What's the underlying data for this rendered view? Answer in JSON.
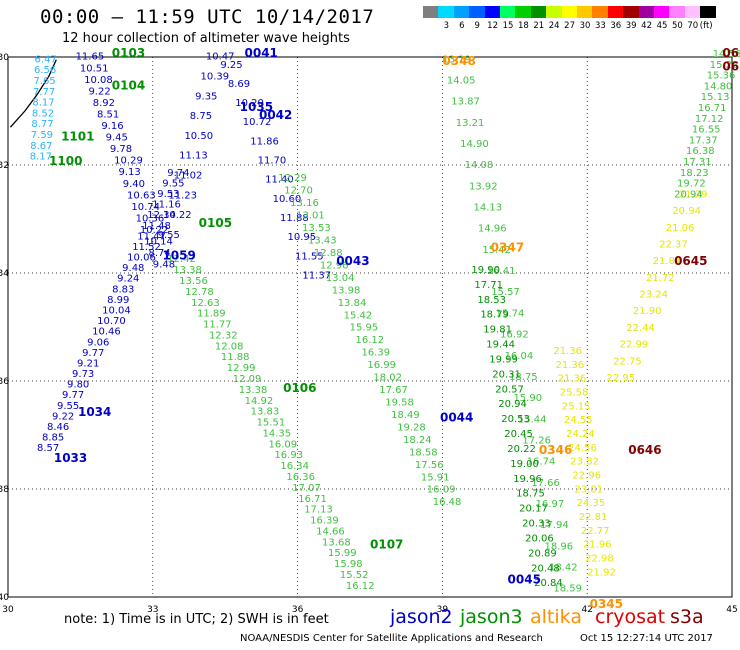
{
  "header": {
    "title": "00:00 – 11:59 UTC 10/14/2017",
    "subtitle": "12 hour collection of altimeter wave heights"
  },
  "legend": {
    "bins": [
      {
        "color": "#7f7f7f",
        "label": ""
      },
      {
        "color": "#00d8ff",
        "label": "3"
      },
      {
        "color": "#00a0ff",
        "label": "6"
      },
      {
        "color": "#0060ff",
        "label": "9"
      },
      {
        "color": "#0000ff",
        "label": "12"
      },
      {
        "color": "#00ff60",
        "label": "15"
      },
      {
        "color": "#00d000",
        "label": "18"
      },
      {
        "color": "#009000",
        "label": "21"
      },
      {
        "color": "#c8ff00",
        "label": "24"
      },
      {
        "color": "#ffff00",
        "label": "27"
      },
      {
        "color": "#ffc800",
        "label": "30"
      },
      {
        "color": "#ff8000",
        "label": "33"
      },
      {
        "color": "#ff0000",
        "label": "36"
      },
      {
        "color": "#a00000",
        "label": "39"
      },
      {
        "color": "#a000a0",
        "label": "42"
      },
      {
        "color": "#ff00ff",
        "label": "45"
      },
      {
        "color": "#ff80ff",
        "label": "50"
      },
      {
        "color": "#ffc0ff",
        "label": "70"
      },
      {
        "color": "#000000",
        "label": "(ft)"
      }
    ]
  },
  "axes": {
    "xticks": [
      "30",
      "33",
      "36",
      "39",
      "42",
      "45"
    ],
    "yticks": [
      "-30",
      "-32",
      "-34",
      "-36",
      "-38",
      "-40"
    ],
    "xrange": [
      30,
      45
    ],
    "yrange": [
      -40,
      -30
    ]
  },
  "colors": {
    "cyan": "#28b4ff",
    "blue": "#0000c8",
    "green": "#40c040",
    "darkgreen": "#009000",
    "yellow": "#e6e600",
    "orange": "#ff9000",
    "darkred": "#800000"
  },
  "tracks": [
    {
      "name": "cyan",
      "color": "#28b4ff",
      "lon0": 30.55,
      "lat0": -30.1,
      "lon1": 30.45,
      "lat1": -31.9,
      "values": [
        "6.47",
        "6.56",
        "7.65",
        "7.77",
        "8.17",
        "8.52",
        "8.77",
        "7.59",
        "8.67",
        "8.17"
      ]
    },
    {
      "name": "b1",
      "color": "#0000c8",
      "lon0": 31.4,
      "lat0": -30.05,
      "lon1": 33.0,
      "lat1": -33.9,
      "values": [
        "11.65",
        "10.51",
        "10.08",
        "9.22",
        "8.92",
        "8.51",
        "9.16",
        "9.45",
        "9.78",
        "10.29",
        "9.13",
        "9.40",
        "10.63",
        "10.74",
        "10.36",
        "10.22",
        "10.14",
        "8.74",
        "9.48"
      ]
    },
    {
      "name": "b2",
      "color": "#0000c8",
      "lon0": 33.3,
      "lat0": -32.2,
      "lon1": 30.6,
      "lat1": -37.3,
      "values": [
        "9.74",
        "9.55",
        "9.53",
        "11.16",
        "12.34",
        "11.48",
        "11.47",
        "11.52",
        "10.06",
        "9.48",
        "9.24",
        "8.83",
        "8.99",
        "10.04",
        "10.70",
        "10.46",
        "9.06",
        "9.77",
        "9.21",
        "9.73",
        "9.80",
        "9.77",
        "9.55",
        "9.22",
        "8.46",
        "8.85",
        "8.57"
      ]
    },
    {
      "name": "b3",
      "color": "#0000c8",
      "lon0": 34.1,
      "lat0": -30.05,
      "lon1": 33.1,
      "lat1": -33.35,
      "values": [
        "10.47",
        "10.39",
        "9.35",
        "8.75",
        "10.50",
        "11.13",
        "11.02",
        "11.23",
        "10.22",
        "9.55"
      ]
    },
    {
      "name": "b4",
      "color": "#0000c8",
      "lon0": 34.4,
      "lat0": -30.2,
      "lon1": 36.1,
      "lat1": -34.1,
      "values": [
        "9.25",
        "8.69",
        "10.20",
        "10.72",
        "11.86",
        "11.70",
        "11.40",
        "10.60",
        "11.88",
        "10.95",
        "11.55",
        "11.37"
      ]
    },
    {
      "name": "g1",
      "color": "#40c040",
      "lon0": 33.3,
      "lat0": -33.8,
      "lon1": 37.0,
      "lat1": -39.85,
      "values": [
        "12.42",
        "13.38",
        "13.56",
        "12.78",
        "12.63",
        "11.89",
        "11.77",
        "12.32",
        "12.08",
        "11.88",
        "12.99",
        "12.09",
        "13.38",
        "14.92",
        "13.83",
        "15.51",
        "14.35",
        "16.09",
        "16.93",
        "16.34",
        "16.36",
        "17.07",
        "16.71",
        "17.13",
        "16.39",
        "14.66",
        "13.68",
        "15.99",
        "15.98",
        "15.52",
        "16.12"
      ]
    },
    {
      "name": "g2",
      "color": "#40c040",
      "lon0": 35.6,
      "lat0": -32.3,
      "lon1": 38.8,
      "lat1": -38.3,
      "values": [
        "12.29",
        "12.70",
        "13.16",
        "13.01",
        "13.53",
        "13.43",
        "12.88",
        "12.96",
        "13.04",
        "13.98",
        "13.84",
        "15.42",
        "15.95",
        "16.12",
        "16.39",
        "16.99",
        "18.02",
        "17.67",
        "19.58",
        "18.49",
        "19.28",
        "18.24",
        "18.58",
        "17.56",
        "15.91",
        "16.09",
        "16.48"
      ]
    },
    {
      "name": "g3",
      "color": "#40c040",
      "lon0": 39.0,
      "lat0": -30.1,
      "lon1": 41.3,
      "lat1": -39.9,
      "values": [
        "13.19",
        "14.05",
        "13.87",
        "13.21",
        "14.90",
        "14.08",
        "13.92",
        "14.13",
        "14.96",
        "15.42",
        "16.41",
        "15.57",
        "15.74",
        "16.92",
        "16.04",
        "18.75",
        "15.90",
        "15.44",
        "17.26",
        "16.74",
        "17.66",
        "16.97",
        "17.94",
        "18.96",
        "18.42",
        "18.59"
      ]
    },
    {
      "name": "g4",
      "color": "#009000",
      "lon0": 39.6,
      "lat0": -34.0,
      "lon1": 40.9,
      "lat1": -39.8,
      "values": [
        "19.90",
        "17.71",
        "18.53",
        "18.79",
        "19.81",
        "19.44",
        "19.99",
        "20.31",
        "20.57",
        "20.94",
        "20.53",
        "20.45",
        "20.22",
        "19.00",
        "19.96",
        "18.75",
        "20.17",
        "20.33",
        "20.06",
        "20.89",
        "20.48",
        "20.84"
      ]
    },
    {
      "name": "y1",
      "color": "#e6e600",
      "lon0": 41.3,
      "lat0": -35.5,
      "lon1": 42.0,
      "lat1": -39.6,
      "values": [
        "21.36",
        "21.36",
        "21.36",
        "25.58",
        "25.15",
        "24.55",
        "24.24",
        "24.56",
        "23.82",
        "22.96",
        "23.01",
        "24.35",
        "22.81",
        "22.77",
        "21.96",
        "22.98",
        "21.92"
      ]
    },
    {
      "name": "y2",
      "color": "#e6e600",
      "lon0": 43.9,
      "lat0": -32.6,
      "lon1": 42.4,
      "lat1": -36.0,
      "values": [
        "21.29",
        "20.94",
        "21.06",
        "22.37",
        "21.81",
        "21.72",
        "23.24",
        "21.90",
        "22.44",
        "22.99",
        "22.75",
        "22.95"
      ]
    },
    {
      "name": "g5",
      "color": "#40c040",
      "lon0": 44.6,
      "lat0": -30.0,
      "lon1": 43.8,
      "lat1": -32.6,
      "values": [
        "14.56",
        "15.22",
        "15.36",
        "14.80",
        "15.13",
        "16.71",
        "17.12",
        "16.55",
        "17.37",
        "16.38",
        "17.31",
        "18.23",
        "19.72",
        "20.94"
      ]
    }
  ],
  "passes": [
    {
      "label": "0103",
      "color": "#009000",
      "lon": 32.15,
      "lat": -30.0
    },
    {
      "label": "0104",
      "color": "#009000",
      "lon": 32.15,
      "lat": -30.6
    },
    {
      "label": "1101",
      "color": "#009000",
      "lon": 31.1,
      "lat": -31.55
    },
    {
      "label": "1100",
      "color": "#009000",
      "lon": 30.85,
      "lat": -32.0
    },
    {
      "label": "0041",
      "color": "#0000c8",
      "lon": 34.9,
      "lat": -30.0
    },
    {
      "label": "1035",
      "color": "#0000c8",
      "lon": 34.8,
      "lat": -31.0
    },
    {
      "label": "0042",
      "color": "#0000c8",
      "lon": 35.2,
      "lat": -31.15
    },
    {
      "label": "0105",
      "color": "#009000",
      "lon": 33.95,
      "lat": -33.15
    },
    {
      "label": "1059",
      "color": "#0000c8",
      "lon": 33.2,
      "lat": -33.75
    },
    {
      "label": "0043",
      "color": "#0000c8",
      "lon": 36.8,
      "lat": -33.85
    },
    {
      "label": "0106",
      "color": "#009000",
      "lon": 35.7,
      "lat": -36.2
    },
    {
      "label": "1034",
      "color": "#0000c8",
      "lon": 31.45,
      "lat": -36.65
    },
    {
      "label": "1033",
      "color": "#0000c8",
      "lon": 30.95,
      "lat": -37.5
    },
    {
      "label": "0044",
      "color": "#0000c8",
      "lon": 38.95,
      "lat": -36.75
    },
    {
      "label": "0107",
      "color": "#009000",
      "lon": 37.5,
      "lat": -39.1
    },
    {
      "label": "0045",
      "color": "#0000c8",
      "lon": 40.35,
      "lat": -39.75
    },
    {
      "label": "0348",
      "color": "#ff9000",
      "lon": 39.0,
      "lat": -30.15
    },
    {
      "label": "0347",
      "color": "#ff9000",
      "lon": 40.0,
      "lat": -33.6
    },
    {
      "label": "0346",
      "color": "#ff9000",
      "lon": 41.0,
      "lat": -37.35
    },
    {
      "label": "0345",
      "color": "#ff9000",
      "lon": 42.05,
      "lat": -40.2
    },
    {
      "label": "0645",
      "color": "#800000",
      "lon": 43.8,
      "lat": -33.85
    },
    {
      "label": "0646",
      "color": "#800000",
      "lon": 42.85,
      "lat": -37.35
    },
    {
      "label": "06",
      "color": "#800000",
      "lon": 44.8,
      "lat": -30.0
    },
    {
      "label": "06",
      "color": "#800000",
      "lon": 44.8,
      "lat": -30.25
    }
  ],
  "footer": {
    "note": "note: 1) Time is in UTC; 2) SWH is in feet",
    "satellites": [
      {
        "name": "jason2",
        "color": "#0000c8"
      },
      {
        "name": "jason3",
        "color": "#009000"
      },
      {
        "name": "altika",
        "color": "#ff9000"
      },
      {
        "name": "cryosat",
        "color": "#e00000"
      },
      {
        "name": "s3a",
        "color": "#800000"
      }
    ],
    "credit": "NOAA/NESDIS Center for Satellite Applications and Research",
    "timestamp": "Oct 15 12:27:14 UTC 2017"
  }
}
